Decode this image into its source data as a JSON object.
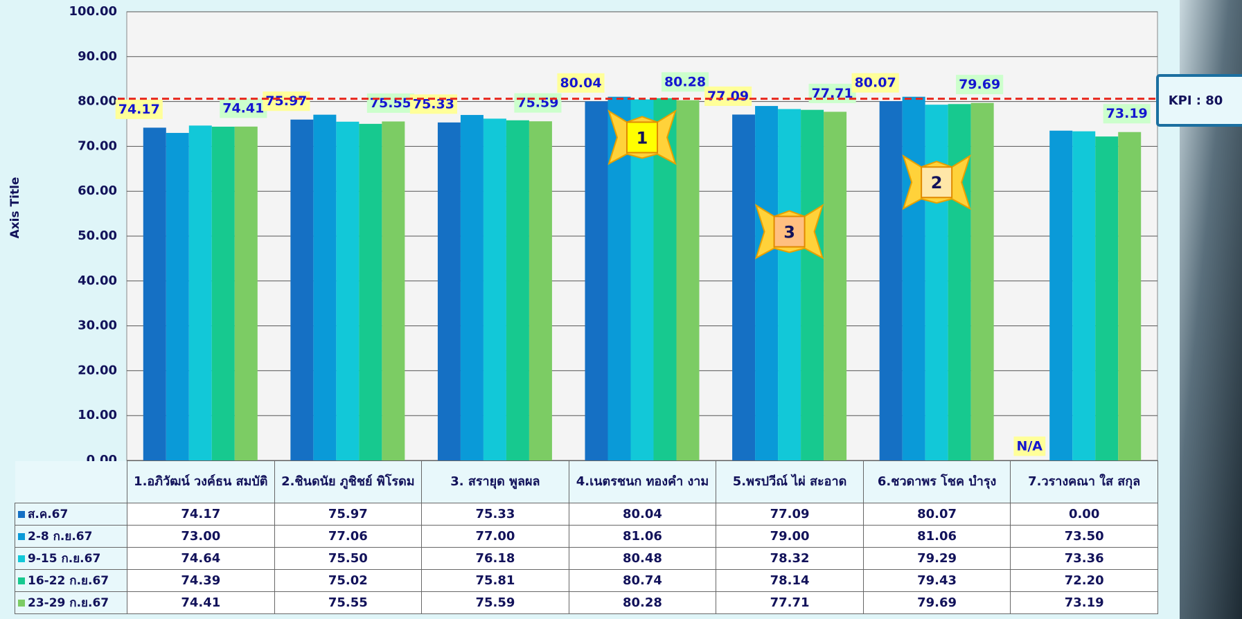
{
  "chart_data": {
    "type": "bar",
    "y_axis_title": "Axis Title",
    "categories": [
      "1.อภิวัฒน์ วงค์ธน สมบัติ",
      "2.ชินดนัย ภูชิชย์ พิโรดม",
      "3. สรายุด พูลผล",
      "4.เนตรชนก ทองคำ งาม",
      "5.พรปวีณ์ ไผ่ สะอาด",
      "6.ชวดาพร โชค บำรุง",
      "7.วรางคณา ใส สกุล"
    ],
    "series": [
      {
        "name": "ส.ค.67",
        "color": "#1570c4",
        "values": [
          74.17,
          75.97,
          75.33,
          80.04,
          77.09,
          80.07,
          0
        ],
        "value_labels": [
          "74.17",
          "75.97",
          "75.33",
          "80.04",
          "77.09",
          "80.07",
          "0.00"
        ]
      },
      {
        "name": "2-8 ก.ย.67",
        "color": "#0a9ad8",
        "values": [
          73,
          77.06,
          77,
          81.06,
          79,
          81.06,
          73.5
        ],
        "value_labels": [
          "73.00",
          "77.06",
          "77.00",
          "81.06",
          "79.00",
          "81.06",
          "73.50"
        ]
      },
      {
        "name": "9-15 ก.ย.67",
        "color": "#12c8d8",
        "values": [
          74.64,
          75.5,
          76.18,
          80.48,
          78.32,
          79.29,
          73.36
        ],
        "value_labels": [
          "74.64",
          "75.50",
          "76.18",
          "80.48",
          "78.32",
          "79.29",
          "73.36"
        ]
      },
      {
        "name": "16-22 ก.ย.67",
        "color": "#17c98f",
        "values": [
          74.39,
          75.02,
          75.81,
          80.74,
          78.14,
          79.43,
          72.2
        ],
        "value_labels": [
          "74.39",
          "75.02",
          "75.81",
          "80.74",
          "78.14",
          "79.43",
          "72.20"
        ]
      },
      {
        "name": "23-29 ก.ย.67",
        "color": "#7ccc64",
        "values": [
          74.41,
          75.55,
          75.59,
          80.28,
          77.71,
          79.69,
          73.19
        ],
        "value_labels": [
          "74.41",
          "75.55",
          "75.59",
          "80.28",
          "77.71",
          "79.69",
          "73.19"
        ]
      }
    ],
    "ylim": [
      0,
      100
    ],
    "yticks": [
      {
        "value": 0,
        "label": "0.00"
      },
      {
        "value": 10,
        "label": "10.00"
      },
      {
        "value": 20,
        "label": "20.00"
      },
      {
        "value": 30,
        "label": "30.00"
      },
      {
        "value": 40,
        "label": "40.00"
      },
      {
        "value": 50,
        "label": "50.00"
      },
      {
        "value": 60,
        "label": "60.00"
      },
      {
        "value": 70,
        "label": "70.00"
      },
      {
        "value": 80,
        "label": "80.00"
      },
      {
        "value": 90,
        "label": "90.00"
      },
      {
        "value": 100,
        "label": "100.00"
      }
    ],
    "grid": true,
    "kpi": {
      "value": 80,
      "label": "KPI : 80",
      "color": "#e8261c"
    },
    "na_label": "N/A",
    "rank_badges": [
      "1",
      "2",
      "3"
    ]
  }
}
